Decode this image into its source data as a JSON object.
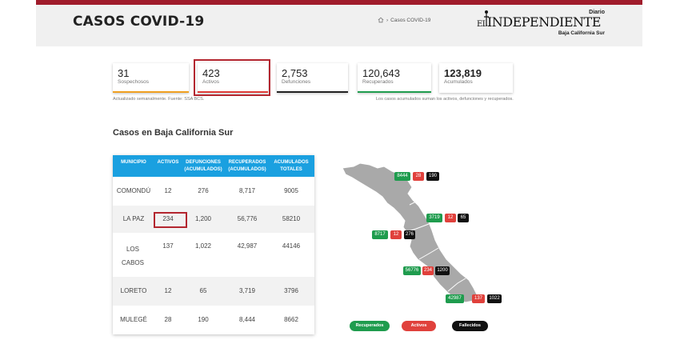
{
  "header": {
    "title": "CASOS COVID-19",
    "breadcrumb": "Casos COVID-19",
    "logo": {
      "diario": "Diario",
      "el": "EL",
      "name": "INDEPENDIENTE",
      "region": "Baja California Sur"
    }
  },
  "stats": [
    {
      "value": "31",
      "label": "Sospechosos",
      "bar_color": "#f0a020"
    },
    {
      "value": "423",
      "label": "Activos",
      "bar_color": "#e0413c"
    },
    {
      "value": "2,753",
      "label": "Defunciones",
      "bar_color": "#222222"
    },
    {
      "value": "120,643",
      "label": "Recuperados",
      "bar_color": "#1f9c4e"
    },
    {
      "value": "123,819",
      "label": "Acumulados",
      "bar_color": "#ffffff"
    }
  ],
  "notes": {
    "left": "Actualizado semanalmente. Fuente: SSA BCS.",
    "right": "Los casos acumulados suman los activos, defunciones y recuperados."
  },
  "section_title": "Casos en Baja California Sur",
  "table": {
    "headers": [
      "MUNICIPIO",
      "ACTIVOS",
      "DEFUNCIONES (ACUMULADOS)",
      "RECUPERADOS (ACUMULADOS)",
      "ACUMULADOS TOTALES"
    ],
    "rows": [
      {
        "municipio": "COMONDÚ",
        "activos": "12",
        "defunciones": "276",
        "recuperados": "8,717",
        "acumulados": "9005"
      },
      {
        "municipio": "LA PAZ",
        "activos": "234",
        "defunciones": "1,200",
        "recuperados": "56,776",
        "acumulados": "58210"
      },
      {
        "municipio": "LOS CABOS",
        "activos": "137",
        "defunciones": "1,022",
        "recuperados": "42,987",
        "acumulados": "44146"
      },
      {
        "municipio": "LORETO",
        "activos": "12",
        "defunciones": "65",
        "recuperados": "3,719",
        "acumulados": "3796"
      },
      {
        "municipio": "MULEGÉ",
        "activos": "28",
        "defunciones": "190",
        "recuperados": "8,444",
        "acumulados": "8662"
      }
    ]
  },
  "map": {
    "mulege": {
      "recuperados": "8444",
      "activos": "28",
      "fallecidos": "190"
    },
    "loreto": {
      "recuperados": "3719",
      "activos": "12",
      "fallecidos": "65"
    },
    "comondu": {
      "recuperados": "8717",
      "activos": "12",
      "fallecidos": "276"
    },
    "la_paz": {
      "recuperados": "56776",
      "activos": "234",
      "fallecidos": "1200"
    },
    "los_cabos": {
      "recuperados": "42987",
      "activos": "137",
      "fallecidos": "1022"
    }
  },
  "legend": {
    "recuperados": "Recuperados",
    "activos": "Activos",
    "fallecidos": "Fallecidos"
  },
  "colors": {
    "accent": "#a01c2b",
    "table_header": "#1aa0e0",
    "green": "#1f9c4e",
    "red": "#e0413c",
    "black": "#111111"
  }
}
